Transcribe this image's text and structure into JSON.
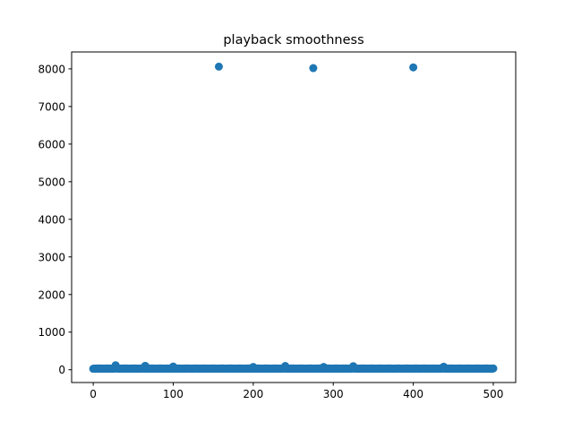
{
  "chart_data": {
    "type": "scatter",
    "title": "playback smoothness",
    "xlabel": "",
    "ylabel": "",
    "xlim": [
      -27,
      528
    ],
    "ylim": [
      -340,
      8450
    ],
    "xticks": [
      0,
      100,
      200,
      300,
      400,
      500
    ],
    "yticks": [
      0,
      1000,
      2000,
      3000,
      4000,
      5000,
      6000,
      7000,
      8000
    ],
    "grid": false,
    "legend": "none",
    "marker_color": "#1f77b4",
    "series": [
      {
        "outliers": [
          {
            "x": 157,
            "y": 8060
          },
          {
            "x": 275,
            "y": 8020
          },
          {
            "x": 400,
            "y": 8040
          }
        ],
        "baseline": {
          "x_start": 0,
          "x_end": 500,
          "y_typical": 30,
          "bumps": [
            {
              "x": 28,
              "y": 120
            },
            {
              "x": 65,
              "y": 105
            },
            {
              "x": 100,
              "y": 85
            },
            {
              "x": 200,
              "y": 75
            },
            {
              "x": 240,
              "y": 100
            },
            {
              "x": 288,
              "y": 75
            },
            {
              "x": 325,
              "y": 95
            },
            {
              "x": 438,
              "y": 80
            }
          ]
        }
      }
    ]
  }
}
